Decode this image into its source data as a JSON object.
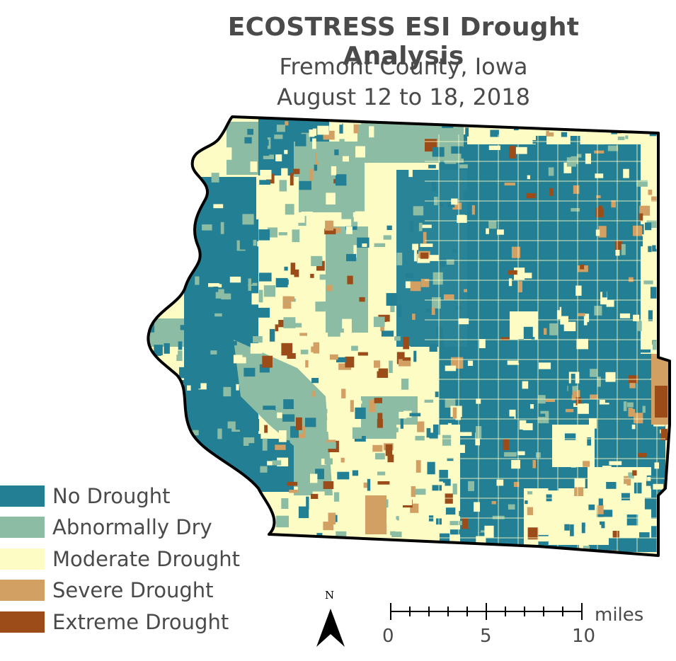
{
  "title": "ECOSTRESS ESI Drought Analysis",
  "subtitle_line1": "Fremont County, Iowa",
  "subtitle_line2": "August 12 to 18, 2018",
  "legend": [
    {
      "label": "No Drought",
      "color": "#237f93"
    },
    {
      "label": "Abnormally Dry",
      "color": "#8cbda4"
    },
    {
      "label": "Moderate Drought",
      "color": "#fcfcc4"
    },
    {
      "label": "Severe Drought",
      "color": "#d3a064"
    },
    {
      "label": "Extreme Drought",
      "color": "#9b4c18"
    }
  ],
  "north_arrow": {
    "letter": "N"
  },
  "scale_bar": {
    "unit": "miles",
    "labels": [
      "0",
      "5",
      "10"
    ]
  }
}
